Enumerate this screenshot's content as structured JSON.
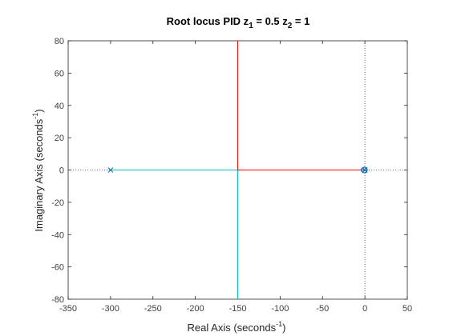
{
  "chart_data": {
    "type": "line",
    "title": {
      "prefix": "Root locus PID z",
      "sub1": "1",
      "middle": " = 0.5  z",
      "sub2": "2",
      "suffix": " = 1"
    },
    "xlabel": {
      "text": "Real Axis (seconds",
      "sup": "-1",
      "close": ")"
    },
    "ylabel": {
      "text": "Imaginary Axis (seconds",
      "sup": "-1",
      "close": ")"
    },
    "xlim": [
      -350,
      50
    ],
    "ylim": [
      -80,
      80
    ],
    "xticks": [
      -350,
      -300,
      -250,
      -200,
      -150,
      -100,
      -50,
      0,
      50
    ],
    "yticks": [
      -80,
      -60,
      -40,
      -20,
      0,
      20,
      40,
      60,
      80
    ],
    "grid": false,
    "series": [
      {
        "color": "#00BFBF",
        "x": [
          -300,
          -150
        ],
        "y": [
          0,
          0
        ]
      },
      {
        "color": "#00BFBF",
        "x": [
          -150,
          -150
        ],
        "y": [
          0,
          -80
        ]
      },
      {
        "color": "#FF0000",
        "x": [
          0,
          -150
        ],
        "y": [
          0,
          0
        ]
      },
      {
        "color": "#FF0000",
        "x": [
          -150,
          -150
        ],
        "y": [
          0,
          80
        ]
      },
      {
        "color": "#00BFBF",
        "x": [
          -1,
          -0.5
        ],
        "y": [
          0,
          0
        ]
      }
    ],
    "poles": [
      {
        "x": -300,
        "y": 0,
        "color": "#0072BD"
      },
      {
        "x": 0,
        "y": 0,
        "color": "#0072BD"
      },
      {
        "x": 0,
        "y": 0,
        "color": "#0072BD"
      }
    ],
    "zeros": [
      {
        "x": -1,
        "y": 0,
        "color": "#0072BD"
      },
      {
        "x": -0.5,
        "y": 0,
        "color": "#0072BD"
      }
    ],
    "reference_lines": [
      {
        "orientation": "horizontal",
        "value": 0
      },
      {
        "orientation": "vertical",
        "value": 0
      }
    ]
  }
}
